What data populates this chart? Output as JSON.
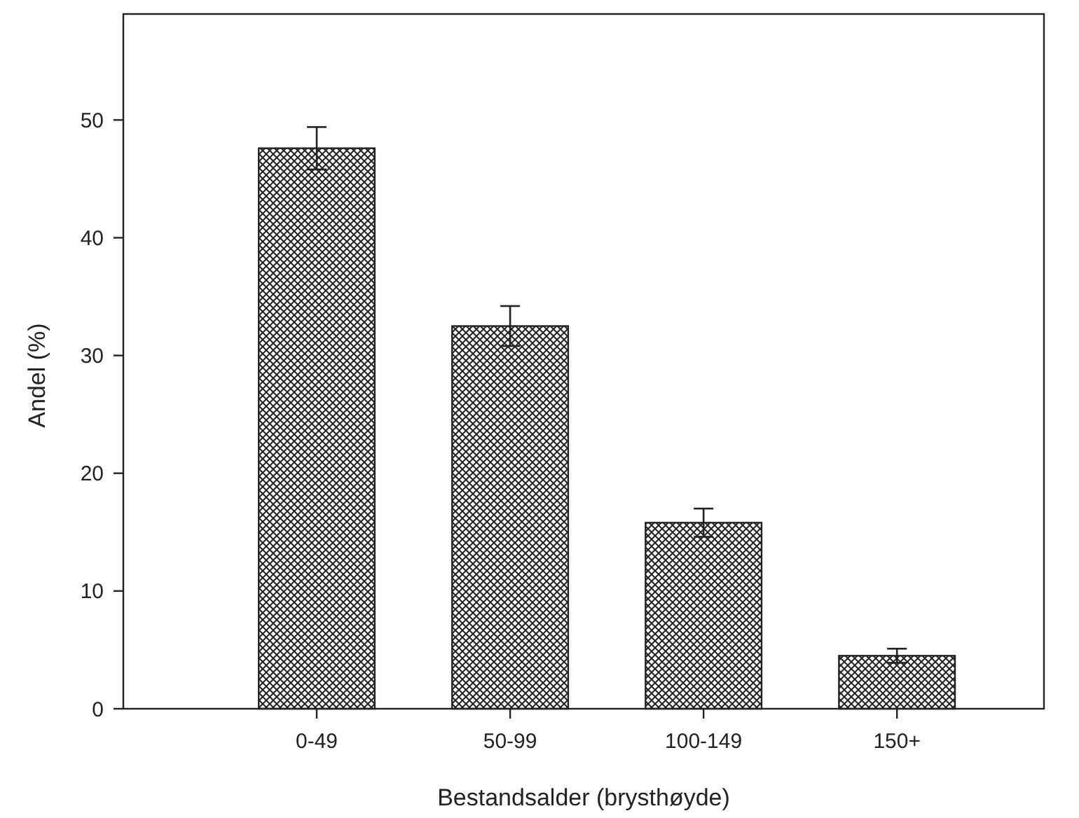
{
  "chart_data": {
    "type": "bar",
    "xlabel": "Bestandsalder (brysthøyde)",
    "ylabel": "Andel (%)",
    "categories": [
      "0-49",
      "50-99",
      "100-149",
      "150+"
    ],
    "values": [
      47.6,
      32.5,
      15.8,
      4.5
    ],
    "errors": [
      1.8,
      1.7,
      1.2,
      0.6
    ],
    "color": "#222222",
    "ylim": [
      0,
      59
    ],
    "yticks": [
      0,
      10,
      20,
      30,
      40,
      50
    ],
    "grid": false
  }
}
